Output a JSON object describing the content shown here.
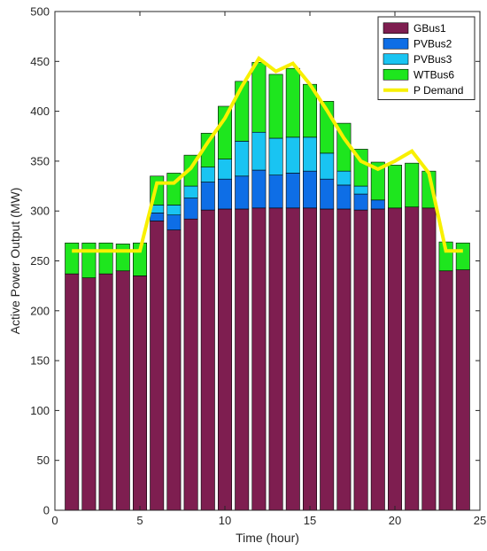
{
  "chart_data": {
    "type": "bar",
    "stacked": true,
    "xlabel": "Time (hour)",
    "ylabel": "Active Power Output (MW)",
    "xlim": [
      0,
      25
    ],
    "ylim": [
      0,
      500
    ],
    "xticks": [
      0,
      5,
      10,
      15,
      20,
      25
    ],
    "yticks": [
      0,
      50,
      100,
      150,
      200,
      250,
      300,
      350,
      400,
      450,
      500
    ],
    "grid": false,
    "legend_position": "top-right",
    "x": [
      1,
      2,
      3,
      4,
      5,
      6,
      7,
      8,
      9,
      10,
      11,
      12,
      13,
      14,
      15,
      16,
      17,
      18,
      19,
      20,
      21,
      22,
      23,
      24
    ],
    "series": [
      {
        "name": "GBus1",
        "color": "#7e1e50",
        "values": [
          237,
          233,
          237,
          240,
          235,
          290,
          281,
          292,
          301,
          302,
          302,
          303,
          303,
          303,
          303,
          302,
          302,
          301,
          302,
          303,
          304,
          303,
          240,
          241
        ]
      },
      {
        "name": "PVBus2",
        "color": "#0e6ee6",
        "values": [
          0,
          0,
          0,
          0,
          0,
          8,
          15,
          21,
          28,
          30,
          33,
          38,
          33,
          35,
          37,
          30,
          24,
          16,
          9,
          0,
          0,
          0,
          0,
          0
        ]
      },
      {
        "name": "PVBus3",
        "color": "#19c4f2",
        "values": [
          0,
          0,
          0,
          0,
          0,
          8,
          10,
          12,
          15,
          20,
          35,
          38,
          37,
          36,
          34,
          26,
          14,
          8,
          0,
          0,
          0,
          0,
          0,
          0
        ]
      },
      {
        "name": "WTBus6",
        "color": "#1ee61e",
        "values": [
          31,
          35,
          31,
          27,
          33,
          29,
          32,
          31,
          34,
          53,
          60,
          70,
          64,
          69,
          53,
          52,
          48,
          37,
          38,
          43,
          44,
          37,
          29,
          27
        ]
      }
    ],
    "line": {
      "name": "P Demand",
      "color": "#f8f000",
      "values": [
        260,
        260,
        260,
        260,
        260,
        328,
        328,
        343,
        369,
        393,
        425,
        453,
        440,
        448,
        427,
        401,
        373,
        350,
        342,
        350,
        360,
        338,
        260,
        260
      ]
    }
  }
}
